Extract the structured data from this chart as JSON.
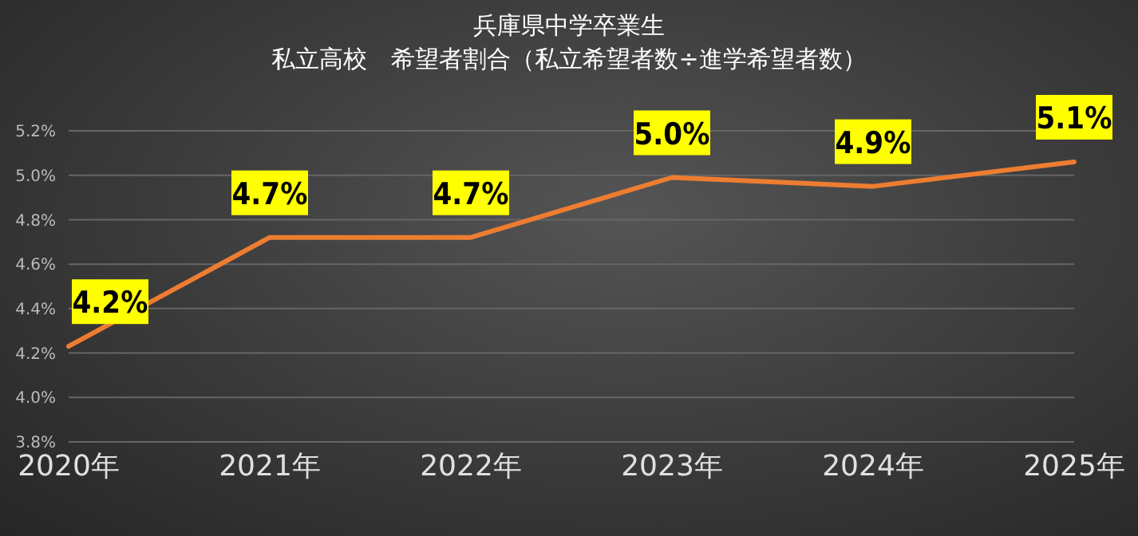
{
  "chart_data": {
    "type": "line",
    "title": "兵庫県中学卒業生",
    "subtitle": "私立高校　希望者割合（私立希望者数÷進学希望者数）",
    "categories": [
      "2020年",
      "2021年",
      "2022年",
      "2023年",
      "2024年",
      "2025年"
    ],
    "series": [
      {
        "color": "#ed7d31",
        "values": [
          4.23,
          4.72,
          4.72,
          4.99,
          4.95,
          5.06
        ],
        "value_labels": [
          "4.2%",
          "4.7%",
          "4.7%",
          "5.0%",
          "4.9%",
          "5.1%"
        ]
      }
    ],
    "ylim": [
      3.8,
      5.2
    ],
    "yticks": [
      {
        "value": 3.8,
        "label": "3.8%"
      },
      {
        "value": 4.0,
        "label": "4.0%"
      },
      {
        "value": 4.2,
        "label": "4.2%"
      },
      {
        "value": 4.4,
        "label": "4.4%"
      },
      {
        "value": 4.6,
        "label": "4.6%"
      },
      {
        "value": 4.8,
        "label": "4.8%"
      },
      {
        "value": 5.0,
        "label": "5.0%"
      },
      {
        "value": 5.2,
        "label": "5.2%"
      }
    ],
    "grid": "y",
    "legend": false,
    "marker": "none",
    "line_style": "solid"
  }
}
